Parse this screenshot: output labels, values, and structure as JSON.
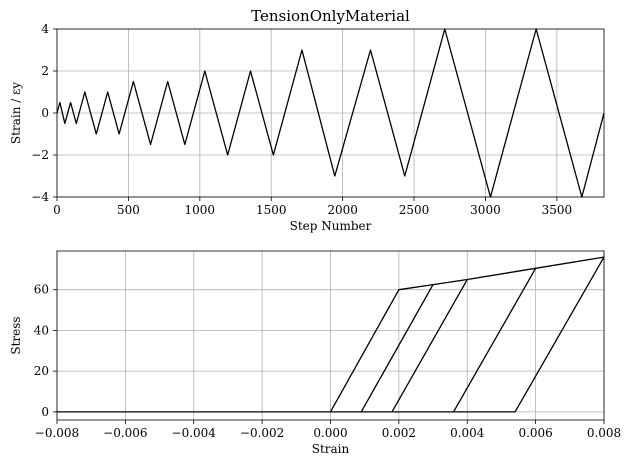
{
  "chart_data": [
    {
      "type": "line",
      "title": "TensionOnlyMaterial",
      "xlabel": "Step Number",
      "ylabel": "Strain / εy",
      "xlim": [
        0,
        3830
      ],
      "ylim": [
        -4,
        4
      ],
      "xticks": [
        0,
        500,
        1000,
        1500,
        2000,
        2500,
        3000,
        3500
      ],
      "xtick_labels": [
        "0",
        "500",
        "1000",
        "1500",
        "2000",
        "2500",
        "3000",
        "3500"
      ],
      "yticks": [
        -4,
        -2,
        0,
        2,
        4
      ],
      "ytick_labels": [
        "−4",
        "−2",
        "0",
        "2",
        "4"
      ],
      "grid": true,
      "series": [
        {
          "x": [
            0,
            20,
            55,
            95,
            135,
            195,
            275,
            355,
            435,
            535,
            655,
            775,
            895,
            1035,
            1195,
            1355,
            1515,
            1715,
            1945,
            2195,
            2435,
            2715,
            3035,
            3355,
            3675,
            3830
          ],
          "y": [
            0,
            0.5,
            -0.5,
            0.5,
            -0.5,
            1,
            -1,
            1,
            -1,
            1.5,
            -1.5,
            1.5,
            -1.5,
            2,
            -2,
            2,
            -2,
            3,
            -3,
            3,
            -3,
            4,
            -4,
            4,
            -4,
            0
          ]
        }
      ]
    },
    {
      "type": "line",
      "title": "",
      "xlabel": "Strain",
      "ylabel": "Stress",
      "xlim": [
        -0.008,
        0.008
      ],
      "ylim": [
        -4,
        79
      ],
      "xticks": [
        -0.008,
        -0.006,
        -0.004,
        -0.002,
        0,
        0.002,
        0.004,
        0.006,
        0.008
      ],
      "xtick_labels": [
        "−0.008",
        "−0.006",
        "−0.004",
        "−0.002",
        "0.000",
        "0.002",
        "0.004",
        "0.006",
        "0.008"
      ],
      "yticks": [
        0,
        20,
        40,
        60
      ],
      "ytick_labels": [
        "0",
        "20",
        "40",
        "60"
      ],
      "grid": true,
      "series": [
        {
          "x": [
            -0.008,
            0,
            0.002,
            0.003,
            0.004,
            0.006,
            0.008,
            0.0054,
            -0.008
          ],
          "y": [
            0,
            0,
            60,
            62.5,
            65,
            70.5,
            76,
            0,
            0
          ]
        },
        {
          "x": [
            0.0009,
            0.003,
            0.0009
          ],
          "y": [
            0,
            62.5,
            0
          ]
        },
        {
          "x": [
            0.0018,
            0.004,
            0.0018
          ],
          "y": [
            0,
            65,
            0
          ]
        },
        {
          "x": [
            0.0036,
            0.006,
            0.0036
          ],
          "y": [
            0,
            70.5,
            0
          ]
        }
      ]
    }
  ]
}
